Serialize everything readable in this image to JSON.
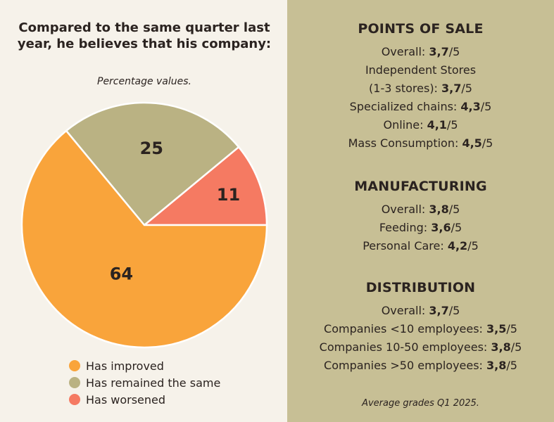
{
  "chart_data": {
    "type": "pie",
    "title": "Compared to the same quarter last year, he believes that his company:",
    "subtitle": "Percentage values.",
    "slices": [
      {
        "label": "Has improved",
        "value": 64,
        "color": "#f9a43b"
      },
      {
        "label": "Has remained the same",
        "value": 25,
        "color": "#bab283"
      },
      {
        "label": "Has worsened",
        "value": 11,
        "color": "#f57a62"
      }
    ],
    "legend_position": "bottom"
  },
  "grades": {
    "groups": [
      {
        "heading": "POINTS OF SALE",
        "lines": [
          {
            "label": "Overall: ",
            "value": "3,7",
            "suffix": "/5"
          },
          {
            "label": "Independent Stores",
            "value": "",
            "suffix": ""
          },
          {
            "label": "(1-3 stores): ",
            "value": "3,7",
            "suffix": "/5"
          },
          {
            "label": "Specialized chains: ",
            "value": "4,3",
            "suffix": "/5"
          },
          {
            "label": "Online: ",
            "value": "4,1",
            "suffix": "/5"
          },
          {
            "label": "Mass Consumption: ",
            "value": "4,5",
            "suffix": "/5"
          }
        ]
      },
      {
        "heading": "MANUFACTURING",
        "lines": [
          {
            "label": "Overall: ",
            "value": "3,8",
            "suffix": "/5"
          },
          {
            "label": "Feeding: ",
            "value": "3,6",
            "suffix": "/5"
          },
          {
            "label": "Personal Care: ",
            "value": "4,2",
            "suffix": "/5"
          }
        ]
      },
      {
        "heading": "DISTRIBUTION",
        "lines": [
          {
            "label": "Overall: ",
            "value": "3,7",
            "suffix": "/5"
          },
          {
            "label": "Companies <10 employees: ",
            "value": "3,5",
            "suffix": "/5"
          },
          {
            "label": "Companies 10-50 employees: ",
            "value": "3,8",
            "suffix": "/5"
          },
          {
            "label": "Companies >50 employees: ",
            "value": "3,8",
            "suffix": "/5"
          }
        ]
      }
    ],
    "footnote": "Average grades Q1 2025."
  }
}
